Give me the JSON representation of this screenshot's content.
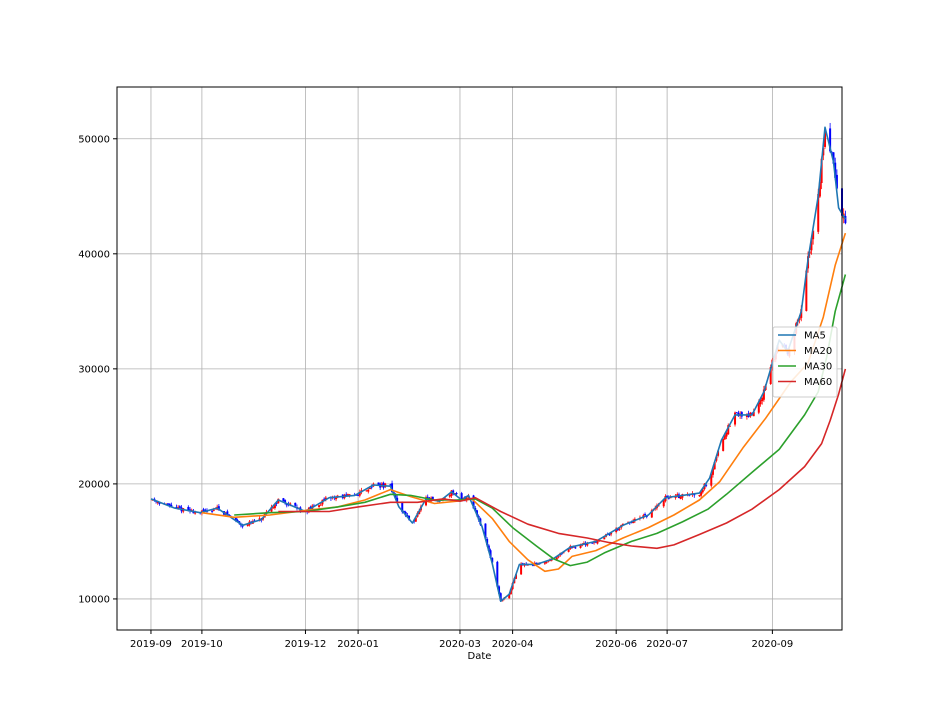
{
  "chart_data": {
    "type": "candlestick",
    "title": "",
    "xlabel": "Date",
    "ylabel": "",
    "ylim": [
      7300,
      54500
    ],
    "xlim": [
      "2019-08-12",
      "2020-10-12"
    ],
    "grid": true,
    "legend_position": "right",
    "x_tick_labels": [
      "2019-09",
      "2019-10",
      "2019-12",
      "2020-01",
      "2020-03",
      "2020-04",
      "2020-06",
      "2020-07",
      "2020-09"
    ],
    "x_ticks": [
      "2019-09-01",
      "2019-10-01",
      "2019-12-01",
      "2020-01-01",
      "2020-03-01",
      "2020-04-01",
      "2020-06-01",
      "2020-07-01",
      "2020-09-01"
    ],
    "y_ticks": [
      10000,
      20000,
      30000,
      40000,
      50000
    ],
    "up_color": "#ff0000",
    "down_color": "#0000ff",
    "price_path": [
      [
        "2019-09-01",
        18700
      ],
      [
        "2019-09-15",
        17900
      ],
      [
        "2019-09-30",
        17500
      ],
      [
        "2019-10-10",
        17900
      ],
      [
        "2019-10-25",
        16400
      ],
      [
        "2019-11-05",
        16900
      ],
      [
        "2019-11-15",
        18600
      ],
      [
        "2019-12-01",
        17600
      ],
      [
        "2019-12-15",
        18800
      ],
      [
        "2019-12-30",
        19000
      ],
      [
        "2020-01-10",
        19900
      ],
      [
        "2020-01-20",
        19800
      ],
      [
        "2020-01-25",
        18000
      ],
      [
        "2020-02-02",
        16600
      ],
      [
        "2020-02-10",
        18700
      ],
      [
        "2020-02-18",
        18500
      ],
      [
        "2020-02-25",
        19300
      ],
      [
        "2020-03-02",
        18600
      ],
      [
        "2020-03-06",
        19000
      ],
      [
        "2020-03-14",
        16300
      ],
      [
        "2020-03-20",
        13100
      ],
      [
        "2020-03-25",
        9800
      ],
      [
        "2020-03-30",
        10400
      ],
      [
        "2020-04-05",
        13000
      ],
      [
        "2020-04-15",
        13000
      ],
      [
        "2020-04-25",
        13500
      ],
      [
        "2020-05-05",
        14500
      ],
      [
        "2020-05-20",
        15000
      ],
      [
        "2020-06-05",
        16400
      ],
      [
        "2020-06-20",
        17300
      ],
      [
        "2020-06-30",
        18800
      ],
      [
        "2020-07-10",
        19000
      ],
      [
        "2020-07-20",
        19200
      ],
      [
        "2020-07-26",
        20500
      ],
      [
        "2020-08-02",
        23800
      ],
      [
        "2020-08-10",
        26000
      ],
      [
        "2020-08-20",
        26000
      ],
      [
        "2020-08-27",
        28000
      ],
      [
        "2020-09-05",
        32500
      ],
      [
        "2020-09-10",
        31500
      ],
      [
        "2020-09-18",
        35000
      ],
      [
        "2020-09-22",
        39500
      ],
      [
        "2020-09-28",
        45000
      ],
      [
        "2020-10-02",
        51000
      ],
      [
        "2020-10-07",
        48000
      ],
      [
        "2020-10-10",
        44000
      ],
      [
        "2020-10-14",
        43000
      ]
    ],
    "series": [
      {
        "name": "MA5",
        "color": "#1f77b4",
        "points": [
          [
            "2019-09-01",
            18700
          ],
          [
            "2019-09-15",
            17900
          ],
          [
            "2019-09-30",
            17500
          ],
          [
            "2019-10-10",
            17900
          ],
          [
            "2019-10-25",
            16400
          ],
          [
            "2019-11-05",
            16900
          ],
          [
            "2019-11-15",
            18600
          ],
          [
            "2019-12-01",
            17600
          ],
          [
            "2019-12-15",
            18800
          ],
          [
            "2019-12-30",
            19000
          ],
          [
            "2020-01-10",
            19900
          ],
          [
            "2020-01-20",
            19800
          ],
          [
            "2020-01-25",
            18000
          ],
          [
            "2020-02-02",
            16600
          ],
          [
            "2020-02-10",
            18700
          ],
          [
            "2020-02-18",
            18500
          ],
          [
            "2020-02-25",
            19300
          ],
          [
            "2020-03-02",
            18600
          ],
          [
            "2020-03-06",
            19000
          ],
          [
            "2020-03-14",
            16300
          ],
          [
            "2020-03-20",
            13100
          ],
          [
            "2020-03-25",
            9800
          ],
          [
            "2020-03-30",
            10400
          ],
          [
            "2020-04-05",
            13000
          ],
          [
            "2020-04-15",
            13000
          ],
          [
            "2020-04-25",
            13500
          ],
          [
            "2020-05-05",
            14500
          ],
          [
            "2020-05-20",
            15000
          ],
          [
            "2020-06-05",
            16400
          ],
          [
            "2020-06-20",
            17300
          ],
          [
            "2020-06-30",
            18800
          ],
          [
            "2020-07-10",
            19000
          ],
          [
            "2020-07-20",
            19200
          ],
          [
            "2020-07-26",
            20500
          ],
          [
            "2020-08-02",
            23800
          ],
          [
            "2020-08-10",
            26000
          ],
          [
            "2020-08-20",
            26000
          ],
          [
            "2020-08-27",
            28000
          ],
          [
            "2020-09-05",
            32500
          ],
          [
            "2020-09-10",
            31500
          ],
          [
            "2020-09-18",
            35000
          ],
          [
            "2020-09-22",
            39500
          ],
          [
            "2020-09-28",
            45000
          ],
          [
            "2020-10-02",
            51000
          ],
          [
            "2020-10-07",
            48000
          ],
          [
            "2020-10-10",
            44000
          ],
          [
            "2020-10-14",
            43000
          ]
        ]
      },
      {
        "name": "MA20",
        "color": "#ff7f0e",
        "points": [
          [
            "2019-10-01",
            17500
          ],
          [
            "2019-10-20",
            17100
          ],
          [
            "2019-11-10",
            17300
          ],
          [
            "2019-12-01",
            17700
          ],
          [
            "2019-12-20",
            18000
          ],
          [
            "2020-01-05",
            18600
          ],
          [
            "2020-01-20",
            19500
          ],
          [
            "2020-02-01",
            18900
          ],
          [
            "2020-02-15",
            18300
          ],
          [
            "2020-02-28",
            18500
          ],
          [
            "2020-03-08",
            18700
          ],
          [
            "2020-03-20",
            17000
          ],
          [
            "2020-03-30",
            15000
          ],
          [
            "2020-04-10",
            13400
          ],
          [
            "2020-04-20",
            12400
          ],
          [
            "2020-04-28",
            12600
          ],
          [
            "2020-05-06",
            13700
          ],
          [
            "2020-05-20",
            14200
          ],
          [
            "2020-06-05",
            15300
          ],
          [
            "2020-06-20",
            16200
          ],
          [
            "2020-07-05",
            17300
          ],
          [
            "2020-07-20",
            18600
          ],
          [
            "2020-08-01",
            20200
          ],
          [
            "2020-08-15",
            23200
          ],
          [
            "2020-08-28",
            25700
          ],
          [
            "2020-09-12",
            28900
          ],
          [
            "2020-09-22",
            30500
          ],
          [
            "2020-10-01",
            34500
          ],
          [
            "2020-10-08",
            39000
          ],
          [
            "2020-10-14",
            41800
          ]
        ]
      },
      {
        "name": "MA30",
        "color": "#2ca02c",
        "points": [
          [
            "2019-10-20",
            17300
          ],
          [
            "2019-11-10",
            17500
          ],
          [
            "2019-12-01",
            17600
          ],
          [
            "2019-12-20",
            18000
          ],
          [
            "2020-01-05",
            18400
          ],
          [
            "2020-01-20",
            19100
          ],
          [
            "2020-02-01",
            19000
          ],
          [
            "2020-02-15",
            18600
          ],
          [
            "2020-02-28",
            18600
          ],
          [
            "2020-03-10",
            18700
          ],
          [
            "2020-03-20",
            17900
          ],
          [
            "2020-04-01",
            16200
          ],
          [
            "2020-04-15",
            14600
          ],
          [
            "2020-04-25",
            13500
          ],
          [
            "2020-05-05",
            12900
          ],
          [
            "2020-05-15",
            13200
          ],
          [
            "2020-05-25",
            14000
          ],
          [
            "2020-06-10",
            15000
          ],
          [
            "2020-06-25",
            15700
          ],
          [
            "2020-07-10",
            16700
          ],
          [
            "2020-07-25",
            17800
          ],
          [
            "2020-08-05",
            19100
          ],
          [
            "2020-08-20",
            21000
          ],
          [
            "2020-09-05",
            23000
          ],
          [
            "2020-09-20",
            26000
          ],
          [
            "2020-09-28",
            28000
          ],
          [
            "2020-10-03",
            31000
          ],
          [
            "2020-10-08",
            35000
          ],
          [
            "2020-10-14",
            38200
          ]
        ]
      },
      {
        "name": "MA60",
        "color": "#d62728",
        "points": [
          [
            "2019-11-15",
            17600
          ],
          [
            "2019-12-15",
            17600
          ],
          [
            "2020-01-01",
            18000
          ],
          [
            "2020-01-20",
            18400
          ],
          [
            "2020-02-05",
            18400
          ],
          [
            "2020-02-20",
            18700
          ],
          [
            "2020-03-01",
            18500
          ],
          [
            "2020-03-10",
            18800
          ],
          [
            "2020-03-25",
            17600
          ],
          [
            "2020-04-10",
            16500
          ],
          [
            "2020-04-28",
            15700
          ],
          [
            "2020-05-15",
            15300
          ],
          [
            "2020-05-28",
            14900
          ],
          [
            "2020-06-10",
            14600
          ],
          [
            "2020-06-25",
            14400
          ],
          [
            "2020-07-05",
            14700
          ],
          [
            "2020-07-20",
            15600
          ],
          [
            "2020-08-05",
            16600
          ],
          [
            "2020-08-20",
            17800
          ],
          [
            "2020-09-05",
            19500
          ],
          [
            "2020-09-20",
            21500
          ],
          [
            "2020-09-30",
            23500
          ],
          [
            "2020-10-05",
            25500
          ],
          [
            "2020-10-10",
            27800
          ],
          [
            "2020-10-14",
            30000
          ]
        ]
      }
    ]
  }
}
